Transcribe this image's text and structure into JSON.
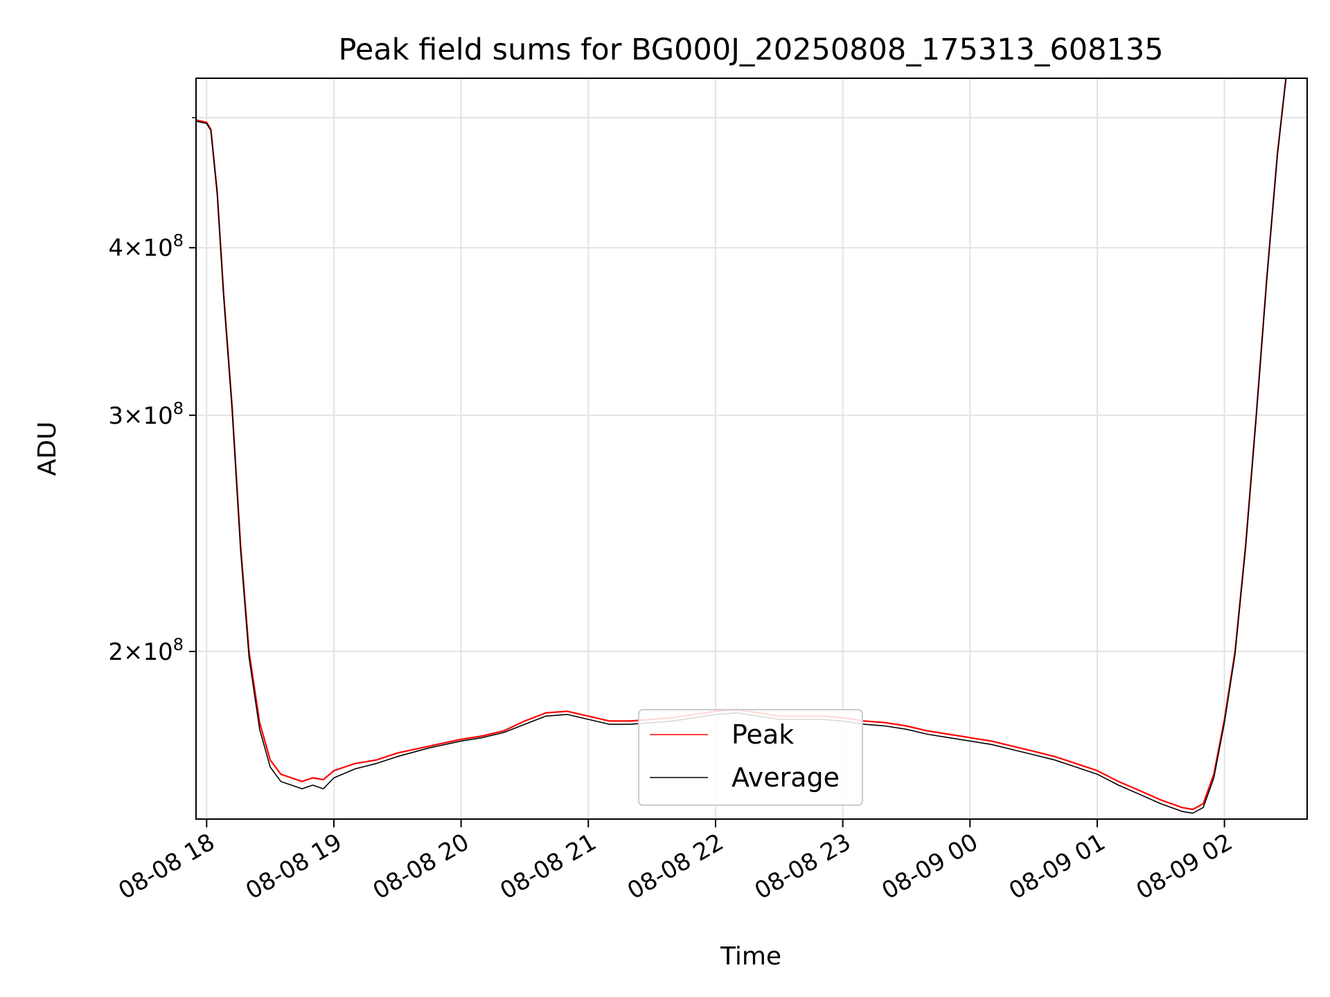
{
  "chart_data": {
    "type": "line",
    "title": "Peak field sums for BG000J_20250808_175313_608135",
    "xlabel": "Time",
    "ylabel": "ADU",
    "yscale": "log",
    "ylim": [
      150000000,
      535000000
    ],
    "xlim": [
      "2025-08-08 17:55",
      "2025-08-09 02:39"
    ],
    "grid": true,
    "legend_position": "lower center",
    "x_ticks": [
      {
        "value": "2025-08-08 18:00",
        "label": "08-08 18"
      },
      {
        "value": "2025-08-08 19:00",
        "label": "08-08 19"
      },
      {
        "value": "2025-08-08 20:00",
        "label": "08-08 20"
      },
      {
        "value": "2025-08-08 21:00",
        "label": "08-08 21"
      },
      {
        "value": "2025-08-08 22:00",
        "label": "08-08 22"
      },
      {
        "value": "2025-08-08 23:00",
        "label": "08-08 23"
      },
      {
        "value": "2025-08-09 00:00",
        "label": "08-09 00"
      },
      {
        "value": "2025-08-09 01:00",
        "label": "08-09 01"
      },
      {
        "value": "2025-08-09 02:00",
        "label": "08-09 02"
      }
    ],
    "y_ticks": [
      {
        "value": 200000000,
        "mantissa": "2",
        "exponent": "8"
      },
      {
        "value": 300000000,
        "mantissa": "3",
        "exponent": "8"
      },
      {
        "value": 400000000,
        "mantissa": "4",
        "exponent": "8"
      }
    ],
    "series": [
      {
        "name": "Peak",
        "color": "#ff0000",
        "points": [
          [
            "2025-08-08 17:55",
            498000000
          ],
          [
            "2025-08-08 18:00",
            496000000
          ],
          [
            "2025-08-08 18:02",
            490000000
          ],
          [
            "2025-08-08 18:05",
            440000000
          ],
          [
            "2025-08-08 18:08",
            370000000
          ],
          [
            "2025-08-08 18:12",
            305000000
          ],
          [
            "2025-08-08 18:16",
            240000000
          ],
          [
            "2025-08-08 18:20",
            200000000
          ],
          [
            "2025-08-08 18:25",
            177000000
          ],
          [
            "2025-08-08 18:30",
            166000000
          ],
          [
            "2025-08-08 18:35",
            162000000
          ],
          [
            "2025-08-08 18:40",
            161000000
          ],
          [
            "2025-08-08 18:45",
            160000000
          ],
          [
            "2025-08-08 18:50",
            161000000
          ],
          [
            "2025-08-08 18:55",
            160500000
          ],
          [
            "2025-08-08 19:00",
            163000000
          ],
          [
            "2025-08-08 19:10",
            165000000
          ],
          [
            "2025-08-08 19:20",
            166000000
          ],
          [
            "2025-08-08 19:30",
            168000000
          ],
          [
            "2025-08-08 19:45",
            170000000
          ],
          [
            "2025-08-08 20:00",
            172000000
          ],
          [
            "2025-08-08 20:10",
            173000000
          ],
          [
            "2025-08-08 20:20",
            174500000
          ],
          [
            "2025-08-08 20:30",
            177500000
          ],
          [
            "2025-08-08 20:40",
            180000000
          ],
          [
            "2025-08-08 20:50",
            180500000
          ],
          [
            "2025-08-08 21:00",
            179000000
          ],
          [
            "2025-08-08 21:10",
            177500000
          ],
          [
            "2025-08-08 21:20",
            177500000
          ],
          [
            "2025-08-08 21:30",
            178000000
          ],
          [
            "2025-08-08 21:40",
            178500000
          ],
          [
            "2025-08-08 21:50",
            179500000
          ],
          [
            "2025-08-08 22:00",
            180500000
          ],
          [
            "2025-08-08 22:10",
            181000000
          ],
          [
            "2025-08-08 22:20",
            180000000
          ],
          [
            "2025-08-08 22:30",
            179000000
          ],
          [
            "2025-08-08 22:40",
            179000000
          ],
          [
            "2025-08-08 22:50",
            179000000
          ],
          [
            "2025-08-08 23:00",
            178500000
          ],
          [
            "2025-08-08 23:10",
            177500000
          ],
          [
            "2025-08-08 23:20",
            177000000
          ],
          [
            "2025-08-08 23:30",
            176000000
          ],
          [
            "2025-08-08 23:40",
            174500000
          ],
          [
            "2025-08-08 23:50",
            173500000
          ],
          [
            "2025-08-09 00:00",
            172500000
          ],
          [
            "2025-08-09 00:10",
            171500000
          ],
          [
            "2025-08-09 00:20",
            170000000
          ],
          [
            "2025-08-09 00:30",
            168500000
          ],
          [
            "2025-08-09 00:40",
            167000000
          ],
          [
            "2025-08-09 00:50",
            165000000
          ],
          [
            "2025-08-09 01:00",
            163000000
          ],
          [
            "2025-08-09 01:10",
            160000000
          ],
          [
            "2025-08-09 01:20",
            157500000
          ],
          [
            "2025-08-09 01:30",
            155000000
          ],
          [
            "2025-08-09 01:40",
            153000000
          ],
          [
            "2025-08-09 01:45",
            152500000
          ],
          [
            "2025-08-09 01:50",
            154000000
          ],
          [
            "2025-08-09 01:55",
            162000000
          ],
          [
            "2025-08-09 02:00",
            178000000
          ],
          [
            "2025-08-09 02:05",
            200000000
          ],
          [
            "2025-08-09 02:10",
            240000000
          ],
          [
            "2025-08-09 02:15",
            300000000
          ],
          [
            "2025-08-09 02:20",
            380000000
          ],
          [
            "2025-08-09 02:25",
            470000000
          ],
          [
            "2025-08-09 02:29",
            535000000
          ]
        ]
      },
      {
        "name": "Average",
        "color": "#000000",
        "points": [
          [
            "2025-08-08 17:55",
            497000000
          ],
          [
            "2025-08-08 18:00",
            495000000
          ],
          [
            "2025-08-08 18:02",
            489000000
          ],
          [
            "2025-08-08 18:05",
            438000000
          ],
          [
            "2025-08-08 18:08",
            368000000
          ],
          [
            "2025-08-08 18:12",
            303000000
          ],
          [
            "2025-08-08 18:16",
            238000000
          ],
          [
            "2025-08-08 18:20",
            198000000
          ],
          [
            "2025-08-08 18:25",
            175000000
          ],
          [
            "2025-08-08 18:30",
            164000000
          ],
          [
            "2025-08-08 18:35",
            160000000
          ],
          [
            "2025-08-08 18:40",
            159000000
          ],
          [
            "2025-08-08 18:45",
            158000000
          ],
          [
            "2025-08-08 18:50",
            159000000
          ],
          [
            "2025-08-08 18:55",
            158000000
          ],
          [
            "2025-08-08 19:00",
            161000000
          ],
          [
            "2025-08-08 19:10",
            163500000
          ],
          [
            "2025-08-08 19:20",
            165000000
          ],
          [
            "2025-08-08 19:30",
            167000000
          ],
          [
            "2025-08-08 19:45",
            169500000
          ],
          [
            "2025-08-08 20:00",
            171500000
          ],
          [
            "2025-08-08 20:10",
            172500000
          ],
          [
            "2025-08-08 20:20",
            174000000
          ],
          [
            "2025-08-08 20:30",
            176500000
          ],
          [
            "2025-08-08 20:40",
            179000000
          ],
          [
            "2025-08-08 20:50",
            179500000
          ],
          [
            "2025-08-08 21:00",
            178000000
          ],
          [
            "2025-08-08 21:10",
            176500000
          ],
          [
            "2025-08-08 21:20",
            176500000
          ],
          [
            "2025-08-08 21:30",
            177000000
          ],
          [
            "2025-08-08 21:40",
            177500000
          ],
          [
            "2025-08-08 21:50",
            178500000
          ],
          [
            "2025-08-08 22:00",
            179500000
          ],
          [
            "2025-08-08 22:10",
            180000000
          ],
          [
            "2025-08-08 22:20",
            179000000
          ],
          [
            "2025-08-08 22:30",
            178000000
          ],
          [
            "2025-08-08 22:40",
            178000000
          ],
          [
            "2025-08-08 22:50",
            178000000
          ],
          [
            "2025-08-08 23:00",
            177500000
          ],
          [
            "2025-08-08 23:10",
            176500000
          ],
          [
            "2025-08-08 23:20",
            176000000
          ],
          [
            "2025-08-08 23:30",
            175000000
          ],
          [
            "2025-08-08 23:40",
            173500000
          ],
          [
            "2025-08-08 23:50",
            172500000
          ],
          [
            "2025-08-09 00:00",
            171500000
          ],
          [
            "2025-08-09 00:10",
            170500000
          ],
          [
            "2025-08-09 00:20",
            169000000
          ],
          [
            "2025-08-09 00:30",
            167500000
          ],
          [
            "2025-08-09 00:40",
            166000000
          ],
          [
            "2025-08-09 00:50",
            164000000
          ],
          [
            "2025-08-09 01:00",
            162000000
          ],
          [
            "2025-08-09 01:10",
            159000000
          ],
          [
            "2025-08-09 01:20",
            156500000
          ],
          [
            "2025-08-09 01:30",
            154000000
          ],
          [
            "2025-08-09 01:40",
            152000000
          ],
          [
            "2025-08-09 01:45",
            151500000
          ],
          [
            "2025-08-09 01:50",
            153000000
          ],
          [
            "2025-08-09 01:55",
            161000000
          ],
          [
            "2025-08-09 02:00",
            177000000
          ],
          [
            "2025-08-09 02:05",
            199000000
          ],
          [
            "2025-08-09 02:10",
            239000000
          ],
          [
            "2025-08-09 02:15",
            299000000
          ],
          [
            "2025-08-09 02:20",
            379000000
          ],
          [
            "2025-08-09 02:25",
            469000000
          ],
          [
            "2025-08-09 02:29",
            535000000
          ]
        ]
      }
    ]
  }
}
